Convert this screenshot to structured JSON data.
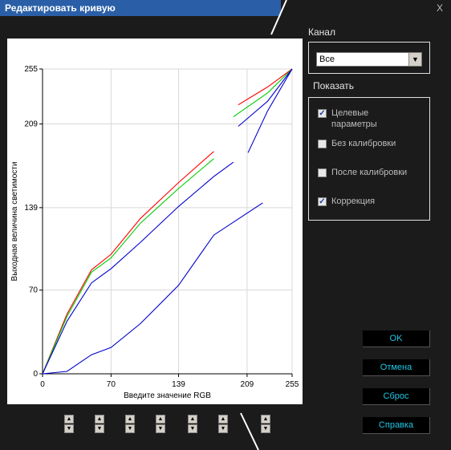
{
  "window": {
    "title": "Редактировать кривую",
    "close_label": "X"
  },
  "channel": {
    "label": "Канал",
    "selected": "Все"
  },
  "show": {
    "label": "Показать",
    "options": [
      {
        "label": "Целевые параметры",
        "checked": true
      },
      {
        "label": "Без калибровки",
        "checked": false
      },
      {
        "label": "После калибровки",
        "checked": false
      },
      {
        "label": "Коррекция",
        "checked": true
      }
    ]
  },
  "buttons": {
    "ok": "OK",
    "cancel": "Отмена",
    "reset": "Сброс",
    "help": "Справка"
  },
  "chart_data": {
    "type": "line",
    "xlabel": "Введите значение RGB",
    "ylabel": "Выходная величина светимости",
    "xlim": [
      0,
      255
    ],
    "ylim": [
      0,
      255
    ],
    "xticks": [
      "0",
      "70",
      "139",
      "209",
      "255"
    ],
    "yticks": [
      "0",
      "70",
      "139",
      "209",
      "255"
    ],
    "grid": true,
    "colors": {
      "red": "#ff0000",
      "green": "#00cc00",
      "blue": "#0000cc"
    },
    "series": [
      {
        "color": "red",
        "points": [
          [
            0,
            0
          ],
          [
            25,
            50
          ],
          [
            50,
            87
          ],
          [
            70,
            100
          ],
          [
            100,
            130
          ],
          [
            139,
            160
          ],
          [
            175,
            186
          ]
        ]
      },
      {
        "color": "red",
        "points": [
          [
            200,
            225
          ],
          [
            230,
            240
          ],
          [
            255,
            255
          ]
        ]
      },
      {
        "color": "green",
        "points": [
          [
            0,
            0
          ],
          [
            25,
            48
          ],
          [
            50,
            85
          ],
          [
            70,
            97
          ],
          [
            100,
            126
          ],
          [
            139,
            155
          ],
          [
            175,
            180
          ]
        ]
      },
      {
        "color": "green",
        "points": [
          [
            195,
            215
          ],
          [
            230,
            235
          ],
          [
            255,
            255
          ]
        ]
      },
      {
        "color": "blue",
        "points": [
          [
            0,
            0
          ],
          [
            25,
            44
          ],
          [
            50,
            76
          ],
          [
            70,
            88
          ],
          [
            100,
            110
          ],
          [
            139,
            140
          ],
          [
            175,
            165
          ],
          [
            195,
            177
          ]
        ]
      },
      {
        "color": "blue",
        "points": [
          [
            200,
            207
          ],
          [
            230,
            228
          ],
          [
            255,
            255
          ]
        ]
      },
      {
        "color": "blue",
        "points": [
          [
            0,
            0
          ],
          [
            25,
            2
          ],
          [
            50,
            16
          ],
          [
            70,
            22
          ],
          [
            100,
            42
          ],
          [
            139,
            74
          ],
          [
            175,
            116
          ],
          [
            225,
            143
          ]
        ]
      },
      {
        "color": "blue",
        "points": [
          [
            210,
            185
          ],
          [
            230,
            220
          ],
          [
            255,
            255
          ]
        ]
      }
    ]
  }
}
